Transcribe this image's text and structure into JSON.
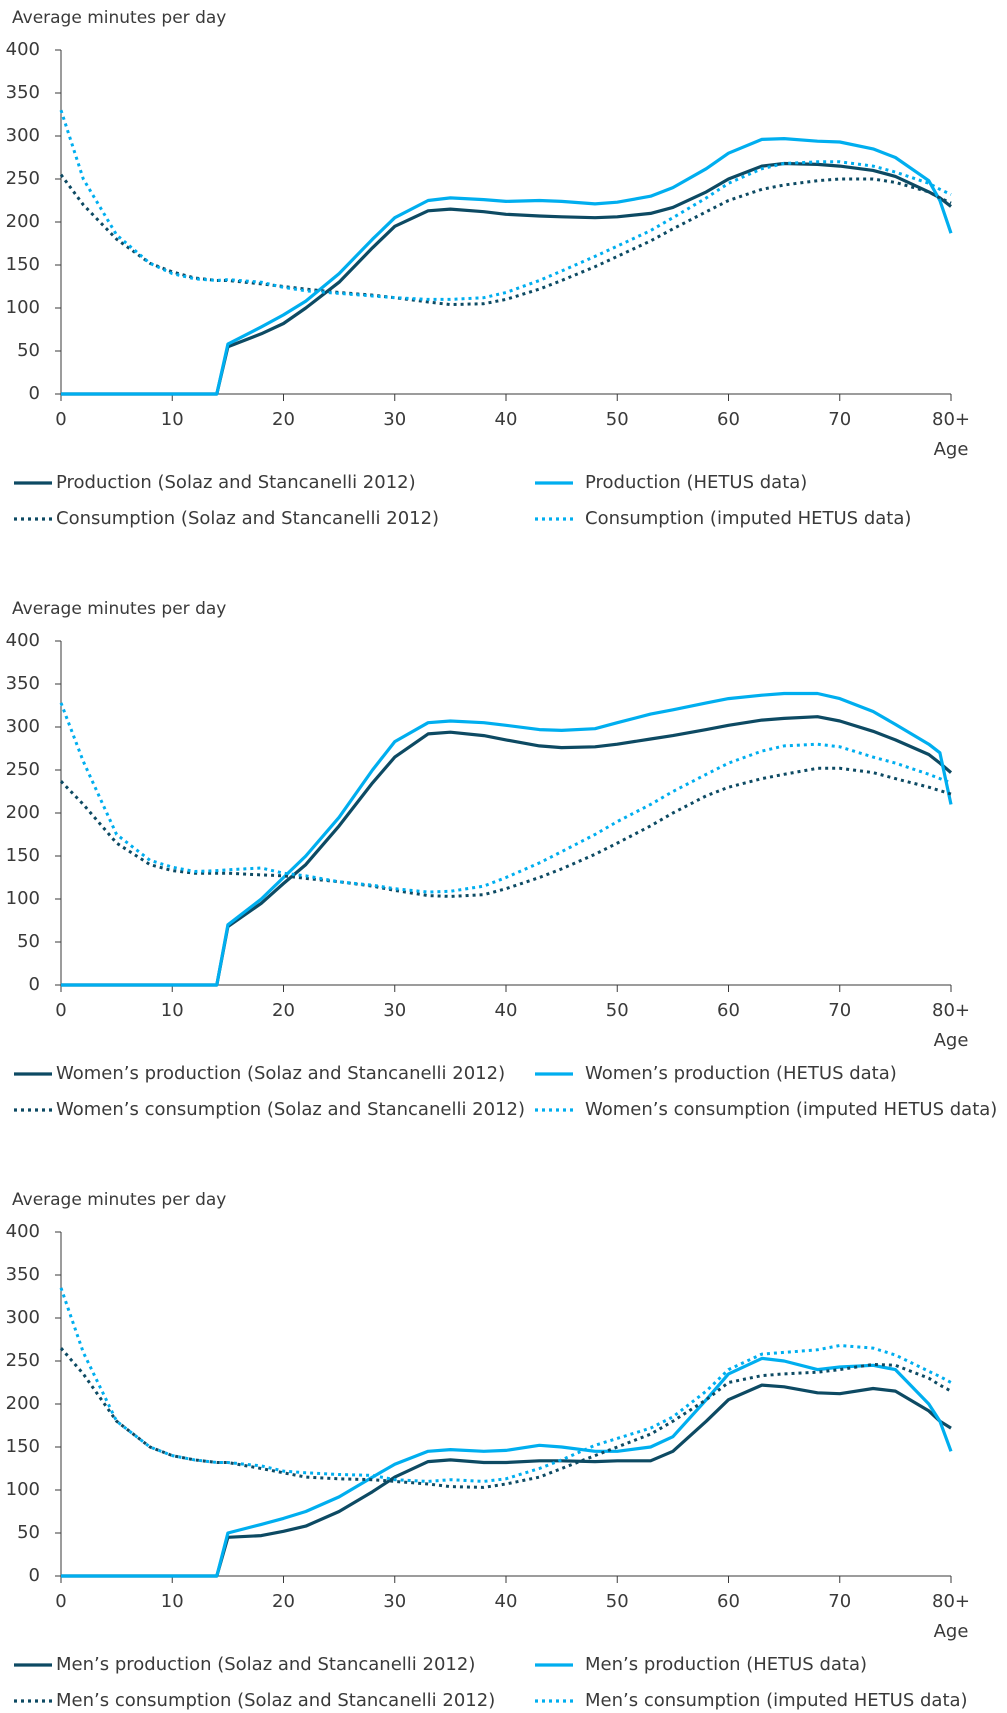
{
  "chart_data": [
    {
      "type": "line",
      "ylabel": "Average minutes per day",
      "xlabel": "Age",
      "x": [
        0,
        2,
        5,
        8,
        10,
        12,
        14,
        15,
        18,
        20,
        22,
        25,
        28,
        30,
        33,
        35,
        38,
        40,
        43,
        45,
        48,
        50,
        53,
        55,
        58,
        60,
        63,
        65,
        68,
        70,
        73,
        75,
        78,
        79,
        80
      ],
      "xlim": [
        0,
        80
      ],
      "xticks": [
        0,
        10,
        20,
        30,
        40,
        50,
        60,
        70,
        {
          "value": 80,
          "label": "80+"
        }
      ],
      "ylim": [
        0,
        400
      ],
      "yticks": [
        0,
        50,
        100,
        150,
        200,
        250,
        300,
        350,
        400
      ],
      "series": [
        {
          "name": "Production (Solaz and Stancanelli 2012)",
          "color": "#0d4a63",
          "line_style": "solid",
          "values": [
            0,
            0,
            0,
            0,
            0,
            0,
            0,
            55,
            70,
            82,
            100,
            130,
            170,
            195,
            213,
            215,
            212,
            209,
            207,
            206,
            205,
            206,
            210,
            217,
            235,
            250,
            265,
            268,
            267,
            265,
            260,
            253,
            235,
            228,
            218
          ]
        },
        {
          "name": "Production (HETUS data)",
          "color": "#00aeef",
          "line_style": "solid",
          "values": [
            0,
            0,
            0,
            0,
            0,
            0,
            0,
            58,
            78,
            92,
            108,
            140,
            180,
            205,
            225,
            228,
            226,
            224,
            225,
            224,
            221,
            223,
            230,
            240,
            262,
            280,
            296,
            297,
            294,
            293,
            285,
            275,
            248,
            225,
            187
          ]
        },
        {
          "name": "Consumption (Solaz and Stancanelli 2012)",
          "color": "#0d4a63",
          "line_style": "dotted",
          "values": [
            255,
            220,
            180,
            152,
            142,
            135,
            132,
            132,
            128,
            125,
            122,
            118,
            115,
            112,
            107,
            104,
            105,
            110,
            122,
            132,
            148,
            160,
            178,
            192,
            212,
            225,
            238,
            243,
            248,
            250,
            250,
            246,
            235,
            228,
            222
          ]
        },
        {
          "name": "Consumption (imputed HETUS data)",
          "color": "#00aeef",
          "line_style": "dotted",
          "values": [
            330,
            250,
            185,
            152,
            140,
            134,
            132,
            133,
            130,
            124,
            120,
            117,
            114,
            112,
            110,
            110,
            112,
            118,
            132,
            143,
            160,
            172,
            190,
            205,
            228,
            245,
            262,
            268,
            270,
            270,
            265,
            258,
            245,
            238,
            232
          ]
        }
      ]
    },
    {
      "type": "line",
      "ylabel": "Average minutes per day",
      "xlabel": "Age",
      "x": [
        0,
        2,
        5,
        8,
        10,
        12,
        14,
        15,
        18,
        20,
        22,
        25,
        28,
        30,
        33,
        35,
        38,
        40,
        43,
        45,
        48,
        50,
        53,
        55,
        58,
        60,
        63,
        65,
        68,
        70,
        73,
        75,
        78,
        79,
        80
      ],
      "xlim": [
        0,
        80
      ],
      "xticks": [
        0,
        10,
        20,
        30,
        40,
        50,
        60,
        70,
        {
          "value": 80,
          "label": "80+"
        }
      ],
      "ylim": [
        0,
        400
      ],
      "yticks": [
        0,
        50,
        100,
        150,
        200,
        250,
        300,
        350,
        400
      ],
      "series": [
        {
          "name": "Women’s production (Solaz and Stancanelli 2012)",
          "color": "#0d4a63",
          "line_style": "solid",
          "values": [
            0,
            0,
            0,
            0,
            0,
            0,
            0,
            68,
            95,
            118,
            140,
            185,
            235,
            265,
            292,
            294,
            290,
            285,
            278,
            276,
            277,
            280,
            286,
            290,
            297,
            302,
            308,
            310,
            312,
            307,
            295,
            285,
            268,
            258,
            247
          ]
        },
        {
          "name": "Women’s production (HETUS data)",
          "color": "#00aeef",
          "line_style": "solid",
          "values": [
            0,
            0,
            0,
            0,
            0,
            0,
            0,
            70,
            100,
            125,
            150,
            195,
            250,
            283,
            305,
            307,
            305,
            302,
            297,
            296,
            298,
            305,
            315,
            320,
            328,
            333,
            337,
            339,
            339,
            333,
            318,
            303,
            280,
            270,
            210
          ]
        },
        {
          "name": "Women’s consumption (Solaz and Stancanelli 2012)",
          "color": "#0d4a63",
          "line_style": "dotted",
          "values": [
            237,
            210,
            165,
            140,
            133,
            130,
            130,
            130,
            128,
            127,
            124,
            120,
            115,
            110,
            104,
            103,
            105,
            112,
            125,
            135,
            152,
            165,
            185,
            200,
            220,
            230,
            240,
            245,
            252,
            252,
            247,
            240,
            230,
            226,
            222
          ]
        },
        {
          "name": "Women’s consumption (imputed HETUS data)",
          "color": "#00aeef",
          "line_style": "dotted",
          "values": [
            328,
            260,
            175,
            145,
            137,
            132,
            133,
            134,
            136,
            130,
            127,
            120,
            116,
            112,
            108,
            109,
            115,
            125,
            142,
            155,
            175,
            190,
            210,
            225,
            245,
            258,
            272,
            278,
            280,
            277,
            265,
            258,
            245,
            240,
            235
          ]
        }
      ]
    },
    {
      "type": "line",
      "ylabel": "Average minutes per day",
      "xlabel": "Age",
      "x": [
        0,
        2,
        5,
        8,
        10,
        12,
        14,
        15,
        18,
        20,
        22,
        25,
        28,
        30,
        33,
        35,
        38,
        40,
        43,
        45,
        48,
        50,
        53,
        55,
        58,
        60,
        63,
        65,
        68,
        70,
        73,
        75,
        78,
        79,
        80
      ],
      "xlim": [
        0,
        80
      ],
      "xticks": [
        0,
        10,
        20,
        30,
        40,
        50,
        60,
        70,
        {
          "value": 80,
          "label": "80+"
        }
      ],
      "ylim": [
        0,
        400
      ],
      "yticks": [
        0,
        50,
        100,
        150,
        200,
        250,
        300,
        350,
        400
      ],
      "series": [
        {
          "name": "Men’s production (Solaz and Stancanelli 2012)",
          "color": "#0d4a63",
          "line_style": "solid",
          "values": [
            0,
            0,
            0,
            0,
            0,
            0,
            0,
            45,
            47,
            52,
            58,
            75,
            98,
            115,
            133,
            135,
            132,
            132,
            134,
            134,
            133,
            134,
            134,
            145,
            180,
            205,
            222,
            220,
            213,
            212,
            218,
            215,
            192,
            180,
            172
          ]
        },
        {
          "name": "Men’s production (HETUS data)",
          "color": "#00aeef",
          "line_style": "solid",
          "values": [
            0,
            0,
            0,
            0,
            0,
            0,
            0,
            50,
            60,
            67,
            75,
            92,
            115,
            130,
            145,
            147,
            145,
            146,
            152,
            150,
            145,
            145,
            150,
            162,
            205,
            235,
            253,
            250,
            240,
            243,
            245,
            240,
            200,
            180,
            145
          ]
        },
        {
          "name": "Men’s consumption (Solaz and Stancanelli 2012)",
          "color": "#0d4a63",
          "line_style": "dotted",
          "values": [
            265,
            235,
            180,
            150,
            140,
            135,
            132,
            132,
            125,
            120,
            115,
            113,
            112,
            110,
            107,
            104,
            103,
            107,
            115,
            125,
            140,
            150,
            165,
            180,
            205,
            225,
            233,
            235,
            237,
            240,
            246,
            245,
            230,
            222,
            215
          ]
        },
        {
          "name": "Men’s consumption (imputed HETUS data)",
          "color": "#00aeef",
          "line_style": "dotted",
          "values": [
            335,
            260,
            180,
            150,
            140,
            135,
            132,
            132,
            128,
            122,
            120,
            118,
            117,
            112,
            110,
            112,
            110,
            113,
            125,
            135,
            152,
            160,
            172,
            185,
            215,
            240,
            258,
            260,
            263,
            268,
            265,
            257,
            238,
            232,
            225
          ]
        }
      ]
    }
  ]
}
